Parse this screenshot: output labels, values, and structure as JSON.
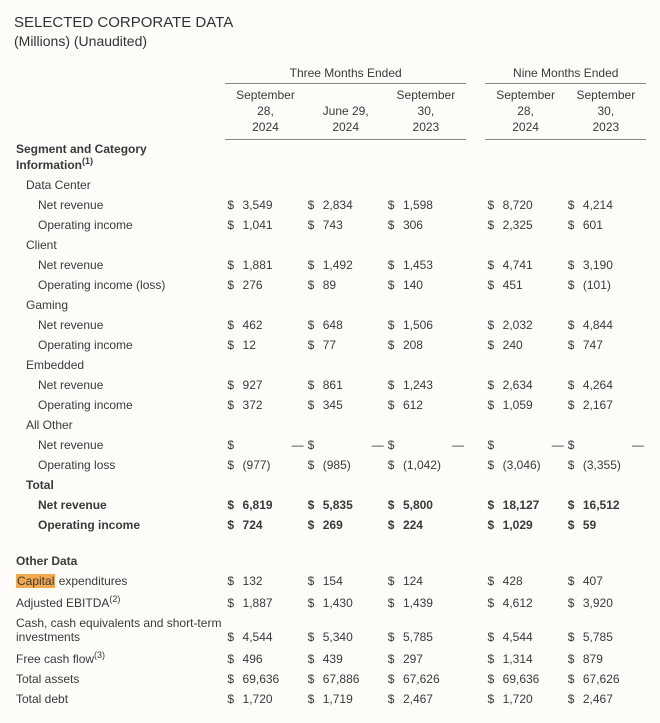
{
  "title": "SELECTED CORPORATE DATA",
  "subtitle": "(Millions) (Unaudited)",
  "period_headers": [
    "Three Months Ended",
    "Nine Months Ended"
  ],
  "columns": [
    {
      "l1": "September",
      "l2": "28,",
      "l3": "2024"
    },
    {
      "l1": "June 29,",
      "l2": "2024",
      "l3": ""
    },
    {
      "l1": "September",
      "l2": "30,",
      "l3": "2023"
    },
    {
      "l1": "September",
      "l2": "28,",
      "l3": "2024"
    },
    {
      "l1": "September",
      "l2": "30,",
      "l3": "2023"
    }
  ],
  "section1": {
    "header": "Segment and Category Information",
    "header_sup": "(1)",
    "groups": [
      {
        "name": "Data Center",
        "rows": [
          {
            "label": "Net revenue",
            "v": [
              "3,549",
              "2,834",
              "1,598",
              "8,720",
              "4,214"
            ]
          },
          {
            "label": "Operating income",
            "v": [
              "1,041",
              "743",
              "306",
              "2,325",
              "601"
            ]
          }
        ]
      },
      {
        "name": "Client",
        "rows": [
          {
            "label": "Net revenue",
            "v": [
              "1,881",
              "1,492",
              "1,453",
              "4,741",
              "3,190"
            ]
          },
          {
            "label": "Operating income (loss)",
            "v": [
              "276",
              "89",
              "140",
              "451",
              "(101)"
            ]
          }
        ]
      },
      {
        "name": "Gaming",
        "rows": [
          {
            "label": "Net revenue",
            "v": [
              "462",
              "648",
              "1,506",
              "2,032",
              "4,844"
            ]
          },
          {
            "label": "Operating income",
            "v": [
              "12",
              "77",
              "208",
              "240",
              "747"
            ]
          }
        ]
      },
      {
        "name": "Embedded",
        "rows": [
          {
            "label": "Net revenue",
            "v": [
              "927",
              "861",
              "1,243",
              "2,634",
              "4,264"
            ]
          },
          {
            "label": "Operating income",
            "v": [
              "372",
              "345",
              "612",
              "1,059",
              "2,167"
            ]
          }
        ]
      },
      {
        "name": "All Other",
        "rows": [
          {
            "label": "Net revenue",
            "v": [
              "—",
              "—",
              "—",
              "—",
              "—"
            ]
          },
          {
            "label": "Operating loss",
            "v": [
              "(977)",
              "(985)",
              "(1,042)",
              "(3,046)",
              "(3,355)"
            ]
          }
        ]
      }
    ],
    "total": {
      "name": "Total",
      "rows": [
        {
          "label": "Net revenue",
          "v": [
            "6,819",
            "5,835",
            "5,800",
            "18,127",
            "16,512"
          ]
        },
        {
          "label": "Operating income",
          "v": [
            "724",
            "269",
            "224",
            "1,029",
            "59"
          ]
        }
      ]
    }
  },
  "section2": {
    "header": "Other Data",
    "rows": [
      {
        "label_pre": "Capital",
        "label_post": " expenditures",
        "highlight": true,
        "v": [
          "132",
          "154",
          "124",
          "428",
          "407"
        ]
      },
      {
        "label": "Adjusted EBITDA",
        "sup": "(2)",
        "v": [
          "1,887",
          "1,430",
          "1,439",
          "4,612",
          "3,920"
        ]
      },
      {
        "label": "Cash, cash equivalents and short-term investments",
        "v": [
          "4,544",
          "5,340",
          "5,785",
          "4,544",
          "5,785"
        ]
      },
      {
        "label": "Free cash flow",
        "sup": "(3)",
        "v": [
          "496",
          "439",
          "297",
          "1,314",
          "879"
        ]
      },
      {
        "label": "Total assets",
        "v": [
          "69,636",
          "67,886",
          "67,626",
          "69,636",
          "67,626"
        ]
      },
      {
        "label": "Total debt",
        "v": [
          "1,720",
          "1,719",
          "2,467",
          "1,720",
          "2,467"
        ]
      }
    ]
  },
  "currency": "$"
}
